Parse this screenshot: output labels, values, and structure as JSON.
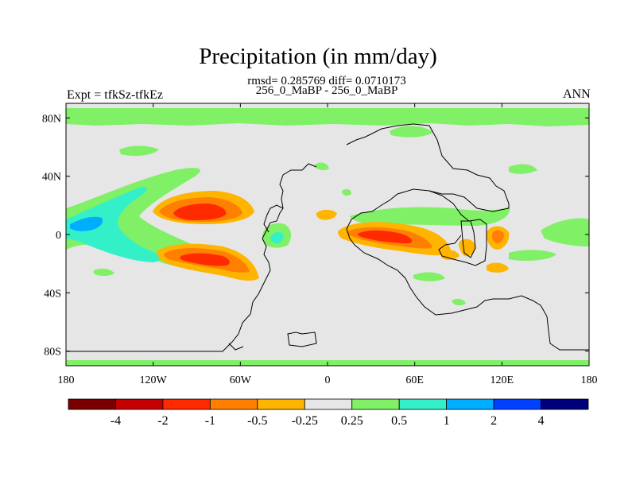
{
  "chart_data": {
    "type": "heatmap",
    "title": "Precipitation (in mm/day)",
    "stats_line": "rmsd= 0.285769 diff= 0.0710173",
    "subtitle": "256_0_MaBP - 256_0_MaBP",
    "left_label": "Expt = tfkSz-tfkEz",
    "right_label": "ANN",
    "x_axis": {
      "range": [
        -180,
        180
      ],
      "ticks": [
        {
          "value": -180,
          "label": "180"
        },
        {
          "value": -120,
          "label": "120W"
        },
        {
          "value": -60,
          "label": "60W"
        },
        {
          "value": 0,
          "label": "0"
        },
        {
          "value": 60,
          "label": "60E"
        },
        {
          "value": 120,
          "label": "120E"
        },
        {
          "value": 180,
          "label": "180"
        }
      ]
    },
    "y_axis": {
      "range": [
        -90,
        90
      ],
      "ticks": [
        {
          "value": 80,
          "label": "80N"
        },
        {
          "value": 40,
          "label": "40N"
        },
        {
          "value": 0,
          "label": "0"
        },
        {
          "value": -40,
          "label": "40S"
        },
        {
          "value": -80,
          "label": "80S"
        }
      ]
    },
    "colorbar": {
      "colors": [
        "#7a0000",
        "#c40000",
        "#ff2a00",
        "#ff7f00",
        "#ffb400",
        "#e6e6e6",
        "#80f066",
        "#34f0c8",
        "#00aeff",
        "#0040ff",
        "#00007a"
      ],
      "labels": [
        "-4",
        "-2",
        "-1",
        "-0.5",
        "-0.25",
        "0.25",
        "0.5",
        "1",
        "2",
        "4"
      ]
    },
    "anomalies": [
      {
        "lon": -105,
        "lat": 15,
        "value": -2.0
      },
      {
        "lon": -100,
        "lat": -18,
        "value": -1.3
      },
      {
        "lon": 40,
        "lat": 0,
        "value": -1.6
      },
      {
        "lon": 120,
        "lat": 0,
        "value": -0.5
      },
      {
        "lon": 0,
        "lat": 13,
        "value": -0.3
      },
      {
        "lon": -150,
        "lat": -12,
        "value": 0.7
      },
      {
        "lon": -150,
        "lat": 8,
        "value": 0.6
      },
      {
        "lon": -20,
        "lat": 0,
        "value": 0.6
      },
      {
        "lon": 150,
        "lat": 0,
        "value": 0.4
      }
    ]
  }
}
